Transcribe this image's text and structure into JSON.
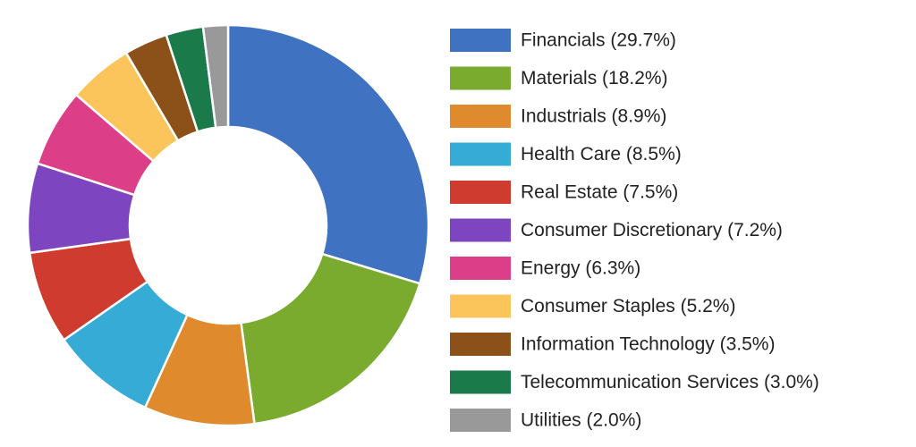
{
  "chart_data": {
    "type": "donut",
    "categories": [
      "Financials (29.7%)",
      "Materials (18.2%)",
      "Industrials (8.9%)",
      "Health Care (8.5%)",
      "Real Estate (7.5%)",
      "Consumer Discretionary (7.2%)",
      "Energy (6.3%)",
      "Consumer Staples (5.2%)",
      "Information Technology (3.5%)",
      "Telecommunication Services (3.0%)",
      "Utilities (2.0%)"
    ],
    "values": [
      29.7,
      18.2,
      8.9,
      8.5,
      7.5,
      7.2,
      6.3,
      5.2,
      3.5,
      3.0,
      2.0
    ],
    "colors": [
      "#3f72c1",
      "#7aab2f",
      "#e08a2e",
      "#36abd6",
      "#cf3b2e",
      "#7e45c0",
      "#dc3f88",
      "#fbc55c",
      "#8b5118",
      "#1a7a4a",
      "#999999"
    ],
    "legend": "right"
  }
}
